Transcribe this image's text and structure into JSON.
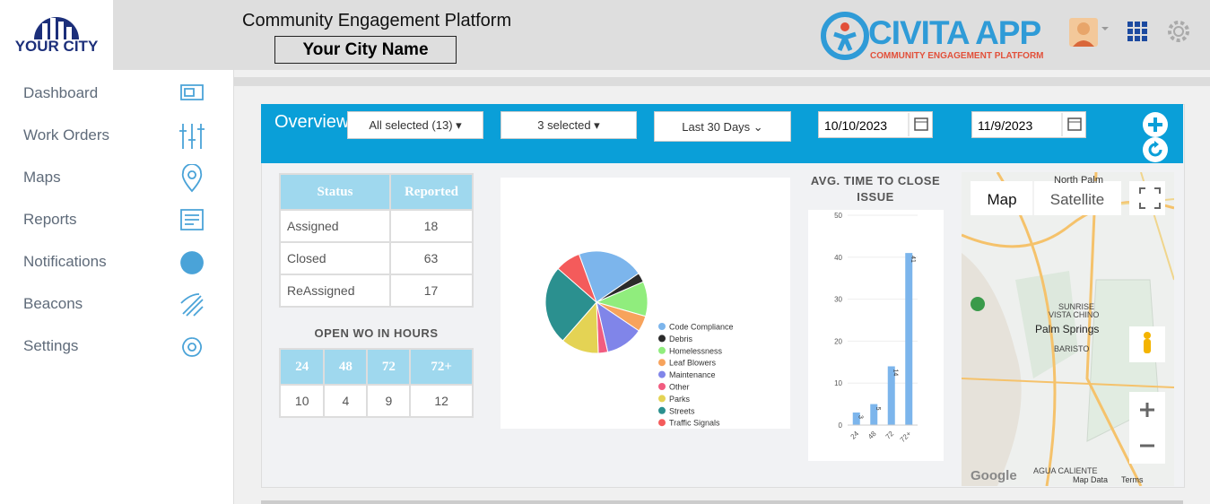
{
  "header": {
    "logo": "YOUR CITY",
    "title": "Community Engagement Platform",
    "city": "Your City Name",
    "brand": "CIVITA APP",
    "brand_sub": "COMMUNITY ENGAGEMENT PLATFORM"
  },
  "sidebar": [
    "Dashboard",
    "Work Orders",
    "Maps",
    "Reports",
    "Notifications",
    "Beacons",
    "Settings"
  ],
  "overview": {
    "title": "Overview",
    "filters": [
      "All selected (13)",
      "3 selected",
      "Last 30 Days"
    ],
    "dates": [
      "10/10/2023",
      "11/9/2023"
    ]
  },
  "status_table": {
    "headers": [
      "Status",
      "Reported"
    ],
    "rows": [
      [
        "Assigned",
        "18"
      ],
      [
        "Closed",
        "63"
      ],
      [
        "ReAssigned",
        "17"
      ]
    ]
  },
  "open_wo": {
    "title": "OPEN WO IN HOURS",
    "headers": [
      "24",
      "48",
      "72",
      "72+"
    ],
    "values": [
      "10",
      "4",
      "9",
      "12"
    ]
  },
  "chart_data": [
    {
      "type": "pie",
      "categories": [
        "Code Compliance",
        "Debris",
        "Homelessness",
        "Leaf Blowers",
        "Maintenance",
        "Other",
        "Parks",
        "Streets",
        "Traffic Signals"
      ],
      "values": [
        21,
        3,
        11,
        5,
        12,
        3,
        12,
        25,
        8
      ],
      "colors": [
        "#7cb5ec",
        "#2b2b2b",
        "#90ed7d",
        "#f7a35c",
        "#8085e9",
        "#f15c80",
        "#e4d354",
        "#2b908f",
        "#f45b5b"
      ]
    },
    {
      "type": "bar",
      "title": "AVG. TIME TO CLOSE ISSUE",
      "categories": [
        "24",
        "48",
        "72",
        "72+"
      ],
      "values": [
        3,
        5,
        14,
        41
      ],
      "color": "#7cb5ec",
      "ylim": [
        0,
        50
      ],
      "yticks": [
        0,
        10,
        20,
        30,
        40,
        50
      ],
      "grid": true
    }
  ],
  "map": {
    "buttons": [
      "Map",
      "Satellite"
    ],
    "places": [
      "North Palm",
      "Palm Springs",
      "SUNRISE",
      "VISTA CHINO",
      "BARISTO",
      "AGUA CALIENTE"
    ],
    "footer": [
      "Google",
      "Map Data",
      "Terms"
    ]
  }
}
